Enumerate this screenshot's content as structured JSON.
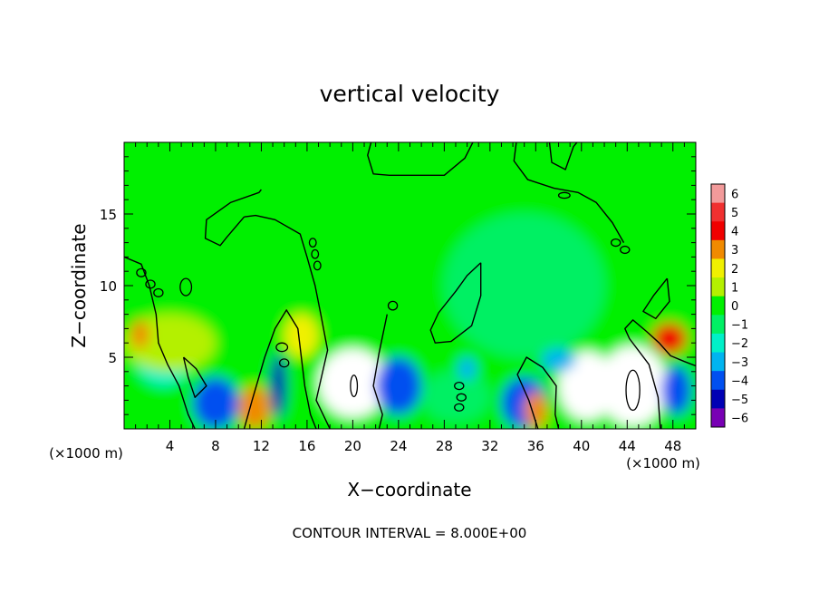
{
  "chart_data": {
    "type": "heatmap",
    "title": "vertical velocity",
    "xlabel": "X−coordinate",
    "ylabel": "Z−coordinate",
    "x_unit_left": "(×1000 m)",
    "x_unit_right": "(×1000 m)",
    "footer": "CONTOUR INTERVAL = 8.000E+00",
    "xlim": [
      0,
      50
    ],
    "ylim": [
      0,
      20
    ],
    "x_ticks": [
      4,
      8,
      12,
      16,
      20,
      24,
      28,
      32,
      36,
      40,
      44,
      48
    ],
    "y_ticks": [
      5,
      10,
      15
    ],
    "colorbar": {
      "levels": [
        6,
        5,
        4,
        3,
        2,
        1,
        0,
        -1,
        -2,
        -3,
        -4,
        -5,
        -6
      ],
      "labels": [
        "6",
        "5",
        "4",
        "3",
        "2",
        "1",
        "0",
        "−1",
        "−2",
        "−3",
        "−4",
        "−5",
        "−6"
      ],
      "colors": [
        "#f29a9a",
        "#f03030",
        "#f00000",
        "#f08a00",
        "#f0f000",
        "#b4f000",
        "#00f000",
        "#00f064",
        "#00f0c8",
        "#00b4f0",
        "#0050f0",
        "#0000b4",
        "#7800b4"
      ]
    },
    "field_cells": [
      {
        "x": [
          0,
          50
        ],
        "z": [
          0,
          20
        ],
        "value": 0.2
      },
      {
        "x": [
          38,
          43
        ],
        "z": [
          0.6,
          5.4
        ],
        "value": -7
      },
      {
        "x": [
          39.2,
          41.8
        ],
        "z": [
          1.8,
          4.2
        ],
        "value": -9
      },
      {
        "x": [
          17,
          23
        ],
        "z": [
          0.8,
          5.6
        ],
        "value": 7
      },
      {
        "x": [
          18.7,
          21.3
        ],
        "z": [
          1.6,
          4.4
        ],
        "value": 9
      },
      {
        "x": [
          41.5,
          47.5
        ],
        "z": [
          0.2,
          5.8
        ],
        "value": 7
      },
      {
        "x": [
          43.3,
          45.7
        ],
        "z": [
          1.2,
          4.8
        ],
        "value": 9
      },
      {
        "x": [
          22,
          26
        ],
        "z": [
          1,
          5
        ],
        "value": -4.5
      },
      {
        "x": [
          6,
          10
        ],
        "z": [
          0,
          3.6
        ],
        "value": -4.5
      },
      {
        "x": [
          12.8,
          14.2
        ],
        "z": [
          0.8,
          5.2
        ],
        "value": -5.2
      },
      {
        "x": [
          33,
          37
        ],
        "z": [
          0,
          3.6
        ],
        "value": -4
      },
      {
        "x": [
          47,
          49.6
        ],
        "z": [
          1,
          4.4
        ],
        "value": -4.2
      },
      {
        "x": [
          10,
          12.8
        ],
        "z": [
          0,
          3
        ],
        "value": 3.2
      },
      {
        "x": [
          46.2,
          49.2
        ],
        "z": [
          5.2,
          7.4
        ],
        "value": 4.2
      },
      {
        "x": [
          35,
          37
        ],
        "z": [
          0,
          2.6
        ],
        "value": 2.6
      },
      {
        "x": [
          14,
          17
        ],
        "z": [
          5,
          8
        ],
        "value": 1.6
      },
      {
        "x": [
          1,
          6
        ],
        "z": [
          3,
          7
        ],
        "value": -1.8
      },
      {
        "x": [
          26,
          32
        ],
        "z": [
          0.5,
          4
        ],
        "value": -1.2
      },
      {
        "x": [
          28,
          42
        ],
        "z": [
          5,
          15
        ],
        "value": -0.6
      },
      {
        "x": [
          0,
          8
        ],
        "z": [
          4,
          8
        ],
        "value": 1
      },
      {
        "x": [
          0.6,
          2.2
        ],
        "z": [
          5.6,
          7.6
        ],
        "value": 3.4
      },
      {
        "x": [
          29.2,
          30.8
        ],
        "z": [
          3.4,
          5
        ],
        "value": -3.2
      },
      {
        "x": [
          36.5,
          39.5
        ],
        "z": [
          4,
          5.6
        ],
        "value": -2.6
      }
    ],
    "zero_contours": [
      [
        [
          0,
          12
        ],
        [
          1.5,
          11.5
        ],
        [
          2.2,
          10
        ],
        [
          2.8,
          8
        ],
        [
          3,
          6
        ],
        [
          3.8,
          4.5
        ],
        [
          4.8,
          3
        ],
        [
          5.6,
          1
        ],
        [
          6.2,
          0
        ]
      ],
      [
        [
          5.2,
          5
        ],
        [
          6.3,
          4.2
        ],
        [
          7.2,
          3
        ],
        [
          6.2,
          2.2
        ],
        [
          5.6,
          3.6
        ],
        [
          5.2,
          5
        ]
      ],
      [
        [
          10.5,
          0
        ],
        [
          11.2,
          2
        ],
        [
          12.3,
          5
        ],
        [
          13.2,
          7
        ],
        [
          14.2,
          8.3
        ],
        [
          15.2,
          7
        ],
        [
          15.5,
          5
        ],
        [
          15.8,
          3
        ],
        [
          16.3,
          1
        ],
        [
          16.8,
          0
        ]
      ],
      [
        [
          18,
          0
        ],
        [
          16.8,
          2
        ],
        [
          17.8,
          5.5
        ],
        [
          17.2,
          8
        ],
        [
          16.7,
          10
        ],
        [
          16,
          12
        ],
        [
          15.4,
          13.6
        ],
        [
          13.2,
          14.6
        ],
        [
          11.5,
          14.9
        ],
        [
          10.5,
          14.8
        ]
      ],
      [
        [
          10.5,
          14.8
        ],
        [
          9,
          13.4
        ],
        [
          8.4,
          12.8
        ],
        [
          7.1,
          13.3
        ],
        [
          7.2,
          14.6
        ],
        [
          9.3,
          15.8
        ],
        [
          11.8,
          16.5
        ],
        [
          12,
          16.7
        ]
      ],
      [
        [
          36.2,
          0
        ],
        [
          35.4,
          2
        ],
        [
          34.4,
          3.8
        ],
        [
          35.2,
          5
        ],
        [
          36.6,
          4.3
        ],
        [
          37.8,
          3
        ],
        [
          37.7,
          1
        ],
        [
          38,
          0
        ]
      ],
      [
        [
          46.9,
          0
        ],
        [
          46.7,
          2.2
        ],
        [
          45.9,
          4.5
        ],
        [
          44.2,
          6.3
        ],
        [
          43.8,
          7
        ],
        [
          44.5,
          7.6
        ],
        [
          45.7,
          6.8
        ],
        [
          46.8,
          6
        ],
        [
          47.8,
          5.1
        ],
        [
          49,
          4.7
        ],
        [
          50,
          4.4
        ]
      ],
      [
        [
          23,
          8
        ],
        [
          22.3,
          5.3
        ],
        [
          21.8,
          3
        ],
        [
          22.6,
          1
        ],
        [
          22.3,
          0
        ]
      ],
      [
        [
          31.2,
          11.6
        ],
        [
          30,
          10.7
        ],
        [
          29,
          9.6
        ],
        [
          27.5,
          8.1
        ],
        [
          26.8,
          6.9
        ],
        [
          27.2,
          6
        ],
        [
          28.6,
          6.1
        ],
        [
          30.4,
          7.2
        ],
        [
          31.2,
          9.3
        ],
        [
          31.2,
          11.6
        ]
      ],
      [
        [
          21.6,
          20
        ],
        [
          21.3,
          19.1
        ],
        [
          21.8,
          17.8
        ],
        [
          23.2,
          17.7
        ],
        [
          25.8,
          17.7
        ],
        [
          28,
          17.7
        ],
        [
          29.8,
          18.9
        ],
        [
          30.5,
          20
        ]
      ],
      [
        [
          34.3,
          20
        ],
        [
          34.1,
          18.7
        ],
        [
          35.3,
          17.4
        ],
        [
          37.6,
          16.8
        ],
        [
          39.7,
          16.5
        ],
        [
          41.3,
          15.8
        ],
        [
          42.7,
          14.4
        ],
        [
          43.7,
          13
        ]
      ],
      [
        [
          37.2,
          20
        ],
        [
          37.4,
          18.6
        ],
        [
          38.6,
          18.1
        ],
        [
          39.3,
          19.7
        ],
        [
          39.6,
          20
        ]
      ],
      [
        [
          47.5,
          10.5
        ],
        [
          46.3,
          9.3
        ],
        [
          45.4,
          8.2
        ],
        [
          46.5,
          7.7
        ],
        [
          47.7,
          8.9
        ],
        [
          47.5,
          10.5
        ]
      ]
    ],
    "contour_loops": [
      {
        "x": 20.1,
        "z": 3,
        "rx": 0.3,
        "rz": 0.75
      },
      {
        "x": 44.5,
        "z": 2.7,
        "rx": 0.6,
        "rz": 1.4
      },
      {
        "x": 16.5,
        "z": 13,
        "rx": 0.3,
        "rz": 0.3
      },
      {
        "x": 16.7,
        "z": 12.2,
        "rx": 0.3,
        "rz": 0.3
      },
      {
        "x": 16.9,
        "z": 11.4,
        "rx": 0.3,
        "rz": 0.3
      },
      {
        "x": 43,
        "z": 13,
        "rx": 0.4,
        "rz": 0.25
      },
      {
        "x": 43.8,
        "z": 12.5,
        "rx": 0.4,
        "rz": 0.25
      },
      {
        "x": 1.5,
        "z": 10.9,
        "rx": 0.4,
        "rz": 0.28
      },
      {
        "x": 2.3,
        "z": 10.1,
        "rx": 0.4,
        "rz": 0.28
      },
      {
        "x": 3,
        "z": 9.5,
        "rx": 0.4,
        "rz": 0.28
      },
      {
        "x": 13.8,
        "z": 5.7,
        "rx": 0.5,
        "rz": 0.3
      },
      {
        "x": 14,
        "z": 4.6,
        "rx": 0.4,
        "rz": 0.28
      },
      {
        "x": 29.3,
        "z": 3,
        "rx": 0.4,
        "rz": 0.25
      },
      {
        "x": 29.5,
        "z": 2.2,
        "rx": 0.4,
        "rz": 0.25
      },
      {
        "x": 29.3,
        "z": 1.5,
        "rx": 0.4,
        "rz": 0.25
      },
      {
        "x": 38.5,
        "z": 16.3,
        "rx": 0.5,
        "rz": 0.2
      },
      {
        "x": 23.5,
        "z": 8.6,
        "rx": 0.4,
        "rz": 0.3
      },
      {
        "x": 5.4,
        "z": 9.9,
        "rx": 0.5,
        "rz": 0.6
      }
    ]
  }
}
